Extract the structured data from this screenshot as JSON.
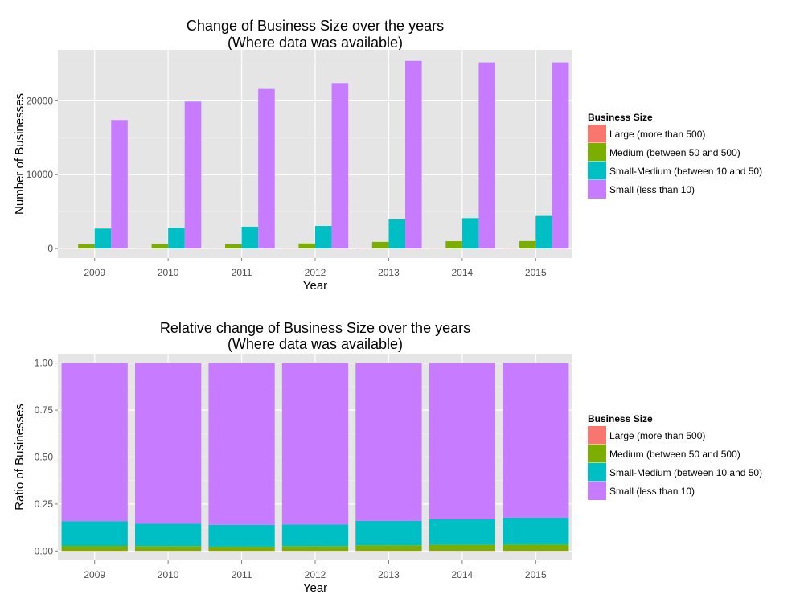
{
  "chart_data": [
    {
      "type": "bar",
      "barmode": "dodge",
      "title": "Change of Business Size over the years",
      "subtitle": "(Where data was available)",
      "xlabel": "Year",
      "ylabel": "Number of Businesses",
      "categories": [
        "2009",
        "2010",
        "2011",
        "2012",
        "2013",
        "2014",
        "2015"
      ],
      "ylim": [
        -1300,
        26900
      ],
      "yticks": [
        0,
        10000,
        20000
      ],
      "yticklabels": [
        "0",
        "10000",
        "20000"
      ],
      "grid": true,
      "legend": {
        "title": "Business Size",
        "position": "right"
      },
      "series": [
        {
          "name": "Large (more than 500)",
          "color": "#F8766D",
          "values": [
            20,
            20,
            20,
            20,
            25,
            30,
            30
          ]
        },
        {
          "name": "Medium (between 50 and 500)",
          "color": "#7CAE00",
          "values": [
            550,
            580,
            560,
            680,
            890,
            980,
            1000
          ]
        },
        {
          "name": "Small-Medium (between 10 and 50)",
          "color": "#00BFC4",
          "values": [
            2700,
            2800,
            2950,
            3050,
            3950,
            4100,
            4400
          ]
        },
        {
          "name": "Small (less than 10)",
          "color": "#C77CFF",
          "values": [
            17400,
            19900,
            21600,
            22400,
            25400,
            25200,
            25200
          ]
        }
      ]
    },
    {
      "type": "bar",
      "barmode": "stack",
      "title": "Relative change of Business Size over the years",
      "subtitle": "(Where data was available)",
      "xlabel": "Year",
      "ylabel": "Ratio of Businesses",
      "categories": [
        "2009",
        "2010",
        "2011",
        "2012",
        "2013",
        "2014",
        "2015"
      ],
      "ylim": [
        -0.05,
        1.05
      ],
      "yticks": [
        0,
        0.25,
        0.5,
        0.75,
        1
      ],
      "yticklabels": [
        "0.00",
        "0.25",
        "0.50",
        "0.75",
        "1.00"
      ],
      "grid": true,
      "legend": {
        "title": "Business Size",
        "position": "right"
      },
      "series": [
        {
          "name": "Large (more than 500)",
          "color": "#F8766D",
          "values": [
            0.001,
            0.001,
            0.001,
            0.001,
            0.001,
            0.001,
            0.001
          ]
        },
        {
          "name": "Medium (between 50 and 500)",
          "color": "#7CAE00",
          "values": [
            0.026,
            0.025,
            0.022,
            0.025,
            0.029,
            0.032,
            0.033
          ]
        },
        {
          "name": "Small-Medium (between 10 and 50)",
          "color": "#00BFC4",
          "values": [
            0.131,
            0.12,
            0.116,
            0.115,
            0.13,
            0.136,
            0.143
          ]
        },
        {
          "name": "Small (less than 10)",
          "color": "#C77CFF",
          "values": [
            0.842,
            0.854,
            0.861,
            0.859,
            0.84,
            0.831,
            0.823
          ]
        }
      ]
    }
  ]
}
